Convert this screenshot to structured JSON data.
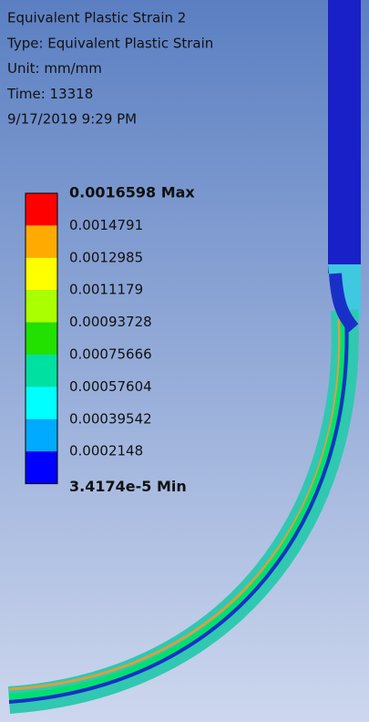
{
  "header": {
    "lines": [
      "Equivalent Plastic Strain 2",
      "Type: Equivalent Plastic Strain",
      "Unit: mm/mm",
      "Time: 13318",
      "9/17/2019 9:29 PM"
    ]
  },
  "legend": {
    "labels": [
      "0.0016598 Max",
      "0.0014791",
      "0.0012985",
      "0.0011179",
      "0.00093728",
      "0.00075666",
      "0.00057604",
      "0.00039542",
      "0.0002148",
      "3.4174e-5 Min"
    ],
    "colors": [
      "#ff0000",
      "#ffaa00",
      "#ffff00",
      "#aaff00",
      "#22e000",
      "#00e0a0",
      "#00ffff",
      "#00aaff",
      "#0000ff"
    ]
  }
}
